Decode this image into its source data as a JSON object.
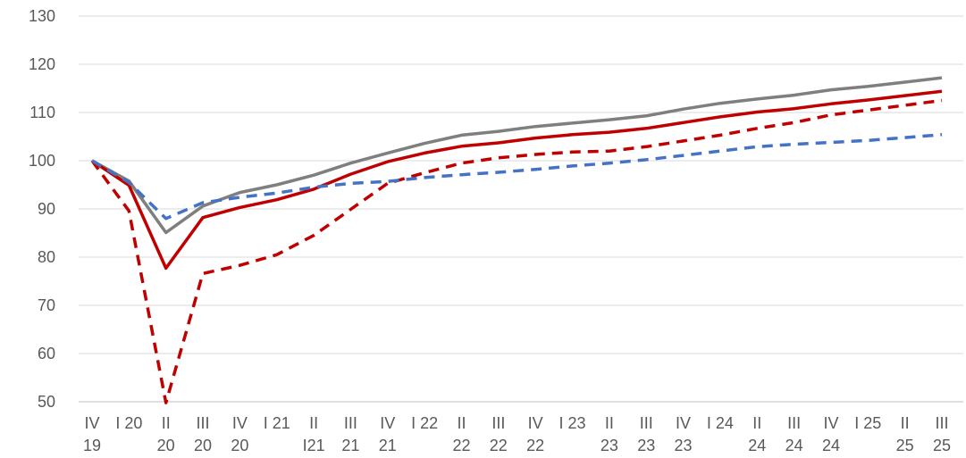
{
  "chart_data": {
    "type": "line",
    "title": "",
    "xlabel": "",
    "ylabel": "",
    "ylim": [
      50,
      130
    ],
    "yticks": [
      "130",
      "120",
      "110",
      "100",
      "90",
      "80",
      "70",
      "60",
      "50"
    ],
    "grid": "horizontal",
    "legend": "none",
    "categories": [
      [
        "IV",
        "19"
      ],
      [
        "I 20",
        ""
      ],
      [
        "II",
        "20"
      ],
      [
        "III",
        "20"
      ],
      [
        "IV",
        "20"
      ],
      [
        "I 21",
        ""
      ],
      [
        "II",
        "I21"
      ],
      [
        "III",
        "21"
      ],
      [
        "IV",
        "21"
      ],
      [
        "I 22",
        ""
      ],
      [
        "II",
        "22"
      ],
      [
        "III",
        "22"
      ],
      [
        "IV",
        "22"
      ],
      [
        "I 23",
        ""
      ],
      [
        "II",
        "23"
      ],
      [
        "III",
        "23"
      ],
      [
        "IV",
        "23"
      ],
      [
        "I 24",
        ""
      ],
      [
        "II",
        "24"
      ],
      [
        "III",
        "24"
      ],
      [
        "IV",
        "24"
      ],
      [
        "I 25",
        ""
      ],
      [
        "II",
        "25"
      ],
      [
        "III",
        "25"
      ]
    ],
    "series": [
      {
        "color": "#7f7f7f",
        "style": "solid",
        "values": [
          100,
          95.8,
          85.1,
          90.6,
          93.4,
          95.0,
          97.0,
          99.5,
          101.6,
          103.6,
          105.3,
          106.1,
          107.1,
          107.8,
          108.5,
          109.3,
          110.7,
          111.9,
          112.8,
          113.6,
          114.7,
          115.4,
          116.3,
          117.2
        ]
      },
      {
        "color": "#c00000",
        "style": "solid",
        "values": [
          100,
          94.9,
          77.7,
          88.2,
          90.3,
          91.9,
          94.1,
          97.2,
          99.8,
          101.6,
          103.0,
          103.7,
          104.7,
          105.4,
          105.9,
          106.7,
          107.9,
          109.1,
          110.1,
          110.8,
          111.8,
          112.6,
          113.5,
          114.4
        ]
      },
      {
        "color": "#c00000",
        "style": "dashed",
        "values": [
          100,
          89.6,
          49.8,
          76.6,
          78.3,
          80.5,
          84.5,
          89.9,
          95.3,
          97.5,
          99.5,
          100.6,
          101.3,
          101.8,
          102.0,
          102.9,
          104.1,
          105.3,
          106.7,
          107.9,
          109.5,
          110.5,
          111.5,
          112.5
        ]
      },
      {
        "color": "#4472c4",
        "style": "dashed",
        "values": [
          100,
          95.5,
          88.0,
          91.3,
          92.4,
          93.3,
          94.5,
          95.3,
          95.7,
          96.5,
          97.1,
          97.6,
          98.2,
          98.9,
          99.5,
          100.2,
          101.1,
          102.0,
          102.9,
          103.4,
          103.8,
          104.2,
          104.8,
          105.4
        ]
      }
    ]
  }
}
